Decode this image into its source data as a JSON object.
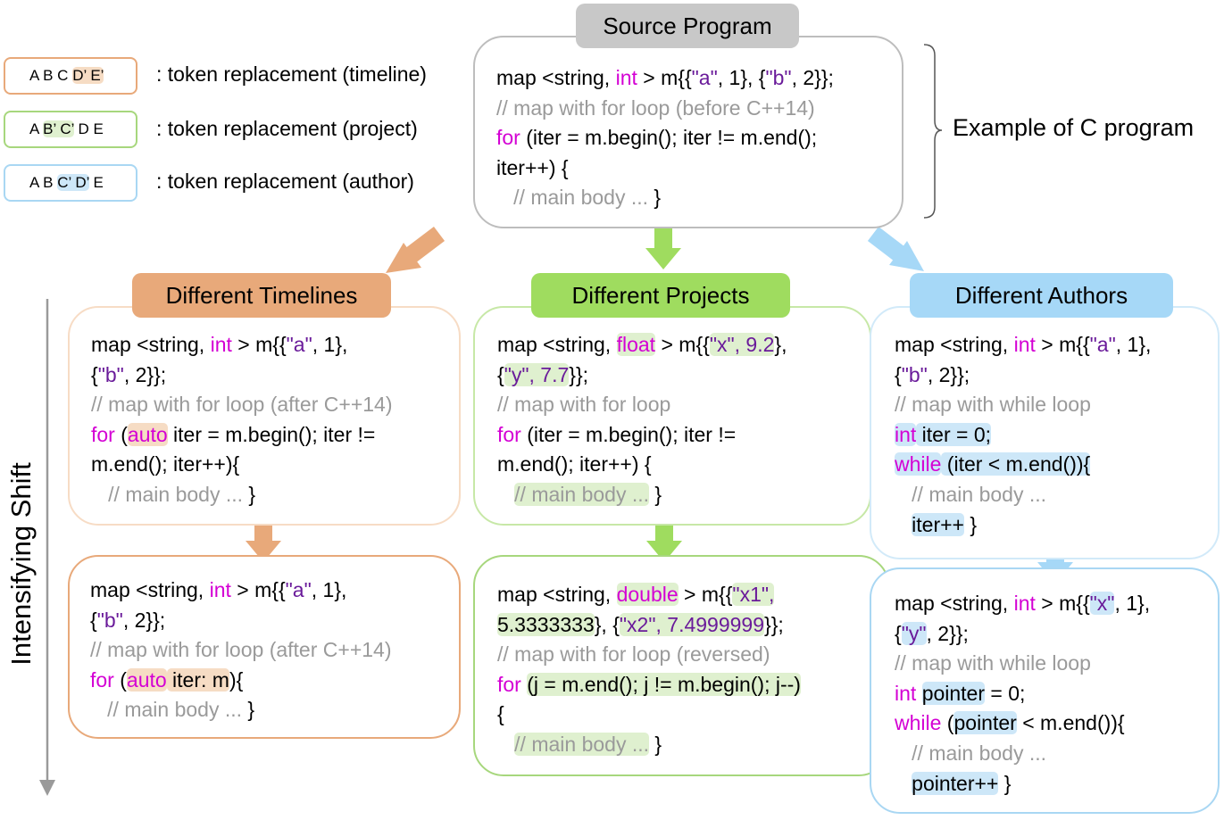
{
  "source": {
    "title": "Source Program",
    "side_label": "Example of C program",
    "lines": [
      [
        {
          "t": "map <string, "
        },
        {
          "t": "int",
          "c": "kw"
        },
        {
          "t": " > m{{"
        },
        {
          "t": "\"a\"",
          "c": "str"
        },
        {
          "t": ", 1}, {"
        },
        {
          "t": "\"b\"",
          "c": "str"
        },
        {
          "t": ", 2}};"
        }
      ],
      [
        {
          "t": "// map with for loop (before C++14)",
          "c": "cm"
        }
      ],
      [
        {
          "t": "for",
          "c": "kw"
        },
        {
          "t": " (iter = m.begin(); iter != m.end();"
        }
      ],
      [
        {
          "t": "iter++) {"
        }
      ],
      [
        {
          "t": "   // main body ... ",
          "c": "cm"
        },
        {
          "t": "}"
        }
      ]
    ]
  },
  "legend": [
    {
      "pre": "A B C ",
      "hl": "D’ E’",
      "post": "",
      "label": ": token replacement (timeline)",
      "color": "#e8a97a",
      "hlclass": "hl-o"
    },
    {
      "pre": "A ",
      "hl": "B’ C’",
      "post": " D E",
      "label": ": token replacement (project)",
      "color": "#a7d77d",
      "hlclass": "hl-g"
    },
    {
      "pre": "A B ",
      "hl": "C’ D’",
      "post": " E",
      "label": ": token replacement (author)",
      "color": "#a9d7f3",
      "hlclass": "hl-b"
    }
  ],
  "axis_label": "Intensifying Shift",
  "columns": {
    "timelines": {
      "title": "Different Timelines",
      "top": [
        [
          {
            "t": "map <string, "
          },
          {
            "t": "int",
            "c": "kw"
          },
          {
            "t": " > m{{"
          },
          {
            "t": "\"a\"",
            "c": "str"
          },
          {
            "t": ", 1},"
          }
        ],
        [
          {
            "t": "{"
          },
          {
            "t": "\"b\"",
            "c": "str"
          },
          {
            "t": ", 2}};"
          }
        ],
        [
          {
            "t": "// map with for loop (after C++14)",
            "c": "cm"
          }
        ],
        [
          {
            "t": "for",
            "c": "kw"
          },
          {
            "t": " ("
          },
          {
            "t": "auto",
            "c": "kw",
            "h": "hl-o"
          },
          {
            "t": " iter = m.begin(); iter !="
          }
        ],
        [
          {
            "t": "m.end(); iter++){"
          }
        ],
        [
          {
            "t": "   // main body ... ",
            "c": "cm"
          },
          {
            "t": "}"
          }
        ]
      ],
      "bottom": [
        [
          {
            "t": "map <string, "
          },
          {
            "t": "int",
            "c": "kw"
          },
          {
            "t": " > m{{"
          },
          {
            "t": "\"a\"",
            "c": "str"
          },
          {
            "t": ", 1},"
          }
        ],
        [
          {
            "t": "{"
          },
          {
            "t": "\"b\"",
            "c": "str"
          },
          {
            "t": ", 2}};"
          }
        ],
        [
          {
            "t": "// map with for loop (after C++14)",
            "c": "cm"
          }
        ],
        [
          {
            "t": "for",
            "c": "kw"
          },
          {
            "t": " ("
          },
          {
            "t": "auto",
            "c": "kw",
            "h": "hl-o"
          },
          {
            "t": " iter: m",
            "h": "hl-o"
          },
          {
            "t": "){"
          }
        ],
        [
          {
            "t": "   // main body ... ",
            "c": "cm"
          },
          {
            "t": "}"
          }
        ]
      ]
    },
    "projects": {
      "title": "Different Projects",
      "top": [
        [
          {
            "t": "map <string, "
          },
          {
            "t": "float",
            "c": "kw",
            "h": "hl-g"
          },
          {
            "t": " > m{{"
          },
          {
            "t": "\"x\", 9.2",
            "c": "str",
            "h": "hl-g"
          },
          {
            "t": "},"
          }
        ],
        [
          {
            "t": "{"
          },
          {
            "t": "\"y\", 7.7",
            "c": "str",
            "h": "hl-g"
          },
          {
            "t": "}};"
          }
        ],
        [
          {
            "t": "// map with for loop",
            "c": "cm"
          }
        ],
        [
          {
            "t": "for",
            "c": "kw"
          },
          {
            "t": " (iter = m.begin(); iter !="
          }
        ],
        [
          {
            "t": "m.end(); iter++) {"
          }
        ],
        [
          {
            "t": "   "
          },
          {
            "t": "// main body ...",
            "c": "cm",
            "h": "hl-g"
          },
          {
            "t": " }"
          }
        ]
      ],
      "bottom": [
        [
          {
            "t": "map <string, "
          },
          {
            "t": "double",
            "c": "kw",
            "h": "hl-g"
          },
          {
            "t": " > m{{"
          },
          {
            "t": "\"x1\",",
            "c": "str",
            "h": "hl-g"
          }
        ],
        [
          {
            "t": "5.3333333",
            "h": "hl-g"
          },
          {
            "t": "}, {"
          },
          {
            "t": "\"x2\", 7.4999999",
            "c": "str",
            "h": "hl-g"
          },
          {
            "t": "}};"
          }
        ],
        [
          {
            "t": "// map with for loop (reversed)",
            "c": "cm"
          }
        ],
        [
          {
            "t": "for",
            "c": "kw"
          },
          {
            "t": " "
          },
          {
            "t": "(j = m.end(); j != m.begin(); j--)",
            "h": "hl-g"
          }
        ],
        [
          {
            "t": "{"
          }
        ],
        [
          {
            "t": "   "
          },
          {
            "t": "// main body ...",
            "c": "cm",
            "h": "hl-g"
          },
          {
            "t": " }"
          }
        ]
      ]
    },
    "authors": {
      "title": "Different Authors",
      "top": [
        [
          {
            "t": "map <string, "
          },
          {
            "t": "int",
            "c": "kw"
          },
          {
            "t": " > m{{"
          },
          {
            "t": "\"a\"",
            "c": "str"
          },
          {
            "t": ", 1},"
          }
        ],
        [
          {
            "t": "{"
          },
          {
            "t": "\"b\"",
            "c": "str"
          },
          {
            "t": ", 2}};"
          }
        ],
        [
          {
            "t": "// map with while loop",
            "c": "cm"
          }
        ],
        [
          {
            "t": "int",
            "c": "kw",
            "h": "hl-b"
          },
          {
            "t": " iter = 0;",
            "h": "hl-b"
          }
        ],
        [
          {
            "t": "while",
            "c": "kw",
            "h": "hl-b"
          },
          {
            "t": " (iter < m.end()){",
            "h": "hl-b"
          }
        ],
        [
          {
            "t": "   // main body ...",
            "c": "cm"
          }
        ],
        [
          {
            "t": "   "
          },
          {
            "t": "iter++",
            "h": "hl-b"
          },
          {
            "t": " }"
          }
        ]
      ],
      "bottom": [
        [
          {
            "t": "map <string, "
          },
          {
            "t": "int",
            "c": "kw"
          },
          {
            "t": " > m{{"
          },
          {
            "t": "\"x\"",
            "c": "str",
            "h": "hl-b"
          },
          {
            "t": ", 1},"
          }
        ],
        [
          {
            "t": "{"
          },
          {
            "t": "\"y\"",
            "c": "str",
            "h": "hl-b"
          },
          {
            "t": ", 2}};"
          }
        ],
        [
          {
            "t": "// map with while loop",
            "c": "cm"
          }
        ],
        [
          {
            "t": "int",
            "c": "kw"
          },
          {
            "t": " "
          },
          {
            "t": "pointer",
            "h": "hl-b"
          },
          {
            "t": " = 0;"
          }
        ],
        [
          {
            "t": "while",
            "c": "kw"
          },
          {
            "t": " ("
          },
          {
            "t": "pointer",
            "h": "hl-b"
          },
          {
            "t": " < m.end()){"
          }
        ],
        [
          {
            "t": "   // main body ...",
            "c": "cm"
          }
        ],
        [
          {
            "t": "   "
          },
          {
            "t": "pointer++",
            "h": "hl-b"
          },
          {
            "t": " }"
          }
        ]
      ]
    }
  },
  "colors": {
    "orange": "#e8a97a",
    "orange_light": "#f7dcc5",
    "green": "#a7d77d",
    "green_dark": "#9fdc5f",
    "blue": "#a9d7f3",
    "blue_fill": "#a6d8f7",
    "gray": "#c8c8c8"
  }
}
